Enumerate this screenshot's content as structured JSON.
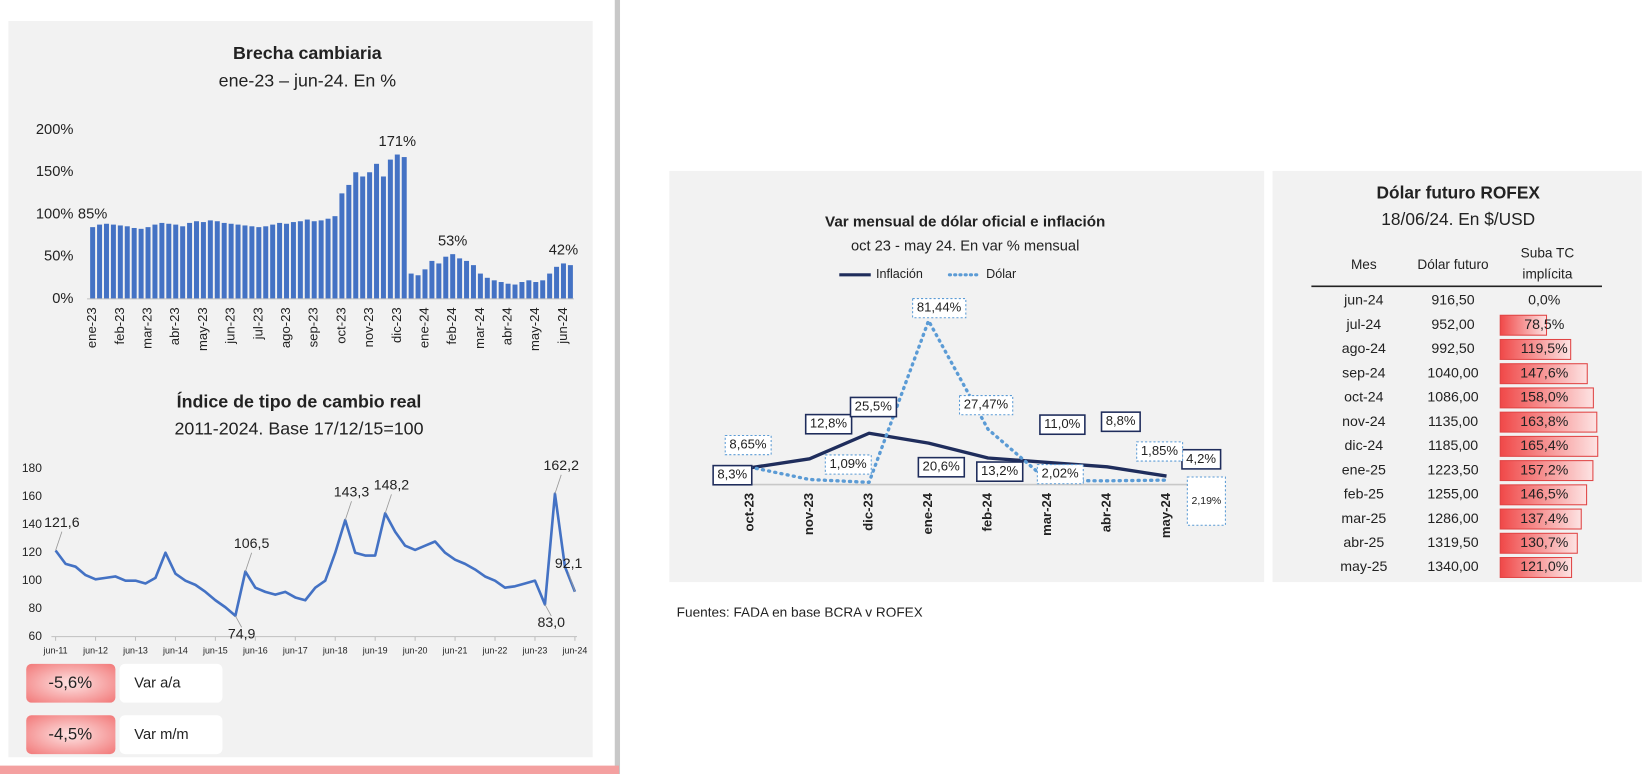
{
  "chart_data": [
    {
      "type": "bar",
      "title": "Brecha cambiaria",
      "subtitle": "ene-23 – jun-24. En %",
      "color": "#4472c4",
      "categories": [
        "ene-23",
        null,
        null,
        null,
        "feb-23",
        null,
        null,
        null,
        "mar-23",
        null,
        null,
        null,
        "abr-23",
        null,
        null,
        null,
        "may-23",
        null,
        null,
        null,
        "jun-23",
        null,
        null,
        null,
        "jul-23",
        null,
        null,
        null,
        "ago-23",
        null,
        null,
        null,
        "sep-23",
        null,
        null,
        null,
        "oct-23",
        null,
        null,
        null,
        "nov-23",
        null,
        null,
        null,
        "dic-23",
        null,
        null,
        null,
        "ene-24",
        null,
        null,
        null,
        "feb-24",
        null,
        null,
        null,
        "mar-24",
        null,
        null,
        null,
        "abr-24",
        null,
        null,
        null,
        "may-24",
        null,
        null,
        null,
        "jun-24",
        null
      ],
      "values": [
        85,
        88,
        89,
        88,
        87,
        86,
        84,
        83,
        85,
        88,
        90,
        89,
        88,
        86,
        90,
        92,
        91,
        93,
        92,
        90,
        89,
        88,
        87,
        86,
        85,
        86,
        88,
        90,
        89,
        91,
        92,
        94,
        92,
        93,
        95,
        98,
        125,
        135,
        150,
        145,
        150,
        160,
        145,
        165,
        171,
        168,
        30,
        28,
        35,
        45,
        42,
        50,
        53,
        48,
        45,
        40,
        30,
        25,
        22,
        20,
        18,
        17,
        20,
        22,
        20,
        22,
        30,
        38,
        42,
        40
      ],
      "value_labels": [
        "85%",
        null,
        null,
        null,
        null,
        null,
        null,
        null,
        null,
        null,
        null,
        null,
        null,
        null,
        null,
        null,
        null,
        null,
        null,
        null,
        null,
        null,
        null,
        null,
        null,
        null,
        null,
        null,
        null,
        null,
        null,
        null,
        null,
        null,
        null,
        null,
        null,
        null,
        null,
        null,
        null,
        null,
        null,
        null,
        "171%",
        null,
        null,
        null,
        null,
        null,
        null,
        null,
        "53%",
        null,
        null,
        null,
        null,
        null,
        null,
        null,
        null,
        null,
        null,
        null,
        null,
        null,
        null,
        null,
        "42%",
        null
      ],
      "ylim": [
        0,
        200
      ],
      "yticks": [
        {
          "value": 0,
          "label": "0%"
        },
        {
          "value": 50,
          "label": "50%"
        },
        {
          "value": 100,
          "label": "100%"
        },
        {
          "value": 150,
          "label": "150%"
        },
        {
          "value": 200,
          "label": "200%"
        }
      ],
      "grid": false
    },
    {
      "type": "line",
      "title": "Índice de tipo de cambio real",
      "subtitle": "2011-2024. Base 17/12/15=100",
      "color": "#4472c4",
      "categories": [
        "jun-11",
        null,
        null,
        null,
        "jun-12",
        null,
        null,
        null,
        "jun-13",
        null,
        null,
        null,
        "jun-14",
        null,
        null,
        null,
        "jun-15",
        null,
        null,
        null,
        "jun-16",
        null,
        null,
        null,
        "jun-17",
        null,
        null,
        null,
        "jun-18",
        null,
        null,
        null,
        "jun-19",
        null,
        null,
        null,
        "jun-20",
        null,
        null,
        null,
        "jun-21",
        null,
        null,
        null,
        "jun-22",
        null,
        null,
        null,
        "jun-23",
        null,
        null,
        null,
        "jun-24"
      ],
      "values": [
        121.6,
        112,
        110,
        104,
        101,
        102,
        103,
        100,
        100,
        98,
        102,
        120,
        105,
        100,
        97,
        92,
        86,
        81,
        74.9,
        106.5,
        95,
        92,
        90,
        92,
        88,
        86,
        95,
        100,
        120,
        143.3,
        120,
        118,
        118,
        148.2,
        135,
        125,
        122,
        125,
        128,
        120,
        115,
        112,
        108,
        103,
        100,
        95,
        96,
        98,
        100,
        83.0,
        162.2,
        110,
        92.1
      ],
      "value_labels": [
        "121,6",
        null,
        null,
        null,
        null,
        null,
        null,
        null,
        null,
        null,
        null,
        null,
        null,
        null,
        null,
        null,
        null,
        null,
        "74,9",
        "106,5",
        null,
        null,
        null,
        null,
        null,
        null,
        null,
        null,
        null,
        "143,3",
        null,
        null,
        null,
        "148,2",
        null,
        null,
        null,
        null,
        null,
        null,
        null,
        null,
        null,
        null,
        null,
        null,
        null,
        null,
        null,
        "83,0",
        "162,2",
        null,
        "92,1"
      ],
      "ylim": [
        60,
        180
      ],
      "yticks": [
        60,
        80,
        100,
        120,
        140,
        160,
        180
      ],
      "grid": false
    },
    {
      "type": "line",
      "title": "Var mensual de dólar oficial e inflación",
      "subtitle": "oct 23 - may 24. En var % mensual",
      "legend": "top",
      "categories": [
        "oct-23",
        "nov-23",
        "dic-23",
        "ene-24",
        "feb-24",
        "mar-24",
        "abr-24",
        "may-24"
      ],
      "series": [
        {
          "name": "Inflación",
          "color": "#1f2d5c",
          "line_style": "solid",
          "values": [
            8.3,
            12.8,
            25.5,
            20.6,
            13.2,
            11.0,
            8.8,
            4.2
          ],
          "value_labels": [
            "8,3%",
            "12,8%",
            "25,5%",
            "20,6%",
            "13,2%",
            "11,0%",
            "8,8%",
            "4,2%"
          ]
        },
        {
          "name": "Dólar",
          "color": "#5b9bd5",
          "line_style": "dotted",
          "values": [
            8.65,
            2.5,
            1.09,
            81.44,
            27.47,
            2.02,
            1.85,
            2.19
          ],
          "value_labels": [
            "8,65%",
            null,
            "1,09%",
            "81,44%",
            "27,47%",
            "2,02%",
            "1,85%",
            "2,19%"
          ]
        }
      ],
      "ylim": [
        0,
        85
      ]
    }
  ],
  "indicators": [
    {
      "value": "-5,6%",
      "label": "Var a/a"
    },
    {
      "value": "-4,5%",
      "label": "Var m/m"
    }
  ],
  "table": {
    "title": "Dólar futuro ROFEX",
    "subtitle": "18/06/24. En $/USD",
    "headers": [
      "Mes",
      "Dólar futuro",
      "Suba TC",
      "implícita"
    ],
    "rows": [
      {
        "mes": "jun-24",
        "futuro": "916,50",
        "suba": {
          "value": 0,
          "label": "0,0%"
        }
      },
      {
        "mes": "jul-24",
        "futuro": "952,00",
        "suba": {
          "value": 78.5,
          "label": "78,5%"
        }
      },
      {
        "mes": "ago-24",
        "futuro": "992,50",
        "suba": {
          "value": 119.5,
          "label": "119,5%"
        }
      },
      {
        "mes": "sep-24",
        "futuro": "1040,00",
        "suba": {
          "value": 147.6,
          "label": "147,6%"
        }
      },
      {
        "mes": "oct-24",
        "futuro": "1086,00",
        "suba": {
          "value": 158.0,
          "label": "158,0%"
        }
      },
      {
        "mes": "nov-24",
        "futuro": "1135,00",
        "suba": {
          "value": 163.8,
          "label": "163,8%"
        }
      },
      {
        "mes": "dic-24",
        "futuro": "1185,00",
        "suba": {
          "value": 165.4,
          "label": "165,4%"
        }
      },
      {
        "mes": "ene-25",
        "futuro": "1223,50",
        "suba": {
          "value": 157.2,
          "label": "157,2%"
        }
      },
      {
        "mes": "feb-25",
        "futuro": "1255,00",
        "suba": {
          "value": 146.5,
          "label": "146,5%"
        }
      },
      {
        "mes": "mar-25",
        "futuro": "1286,00",
        "suba": {
          "value": 137.4,
          "label": "137,4%"
        }
      },
      {
        "mes": "abr-25",
        "futuro": "1319,50",
        "suba": {
          "value": 130.7,
          "label": "130,7%"
        }
      },
      {
        "mes": "may-25",
        "futuro": "1340,00",
        "suba": {
          "value": 121.0,
          "label": "121,0%"
        }
      }
    ]
  },
  "footer": "Fuentes: FADA en base BCRA y ROFEX"
}
